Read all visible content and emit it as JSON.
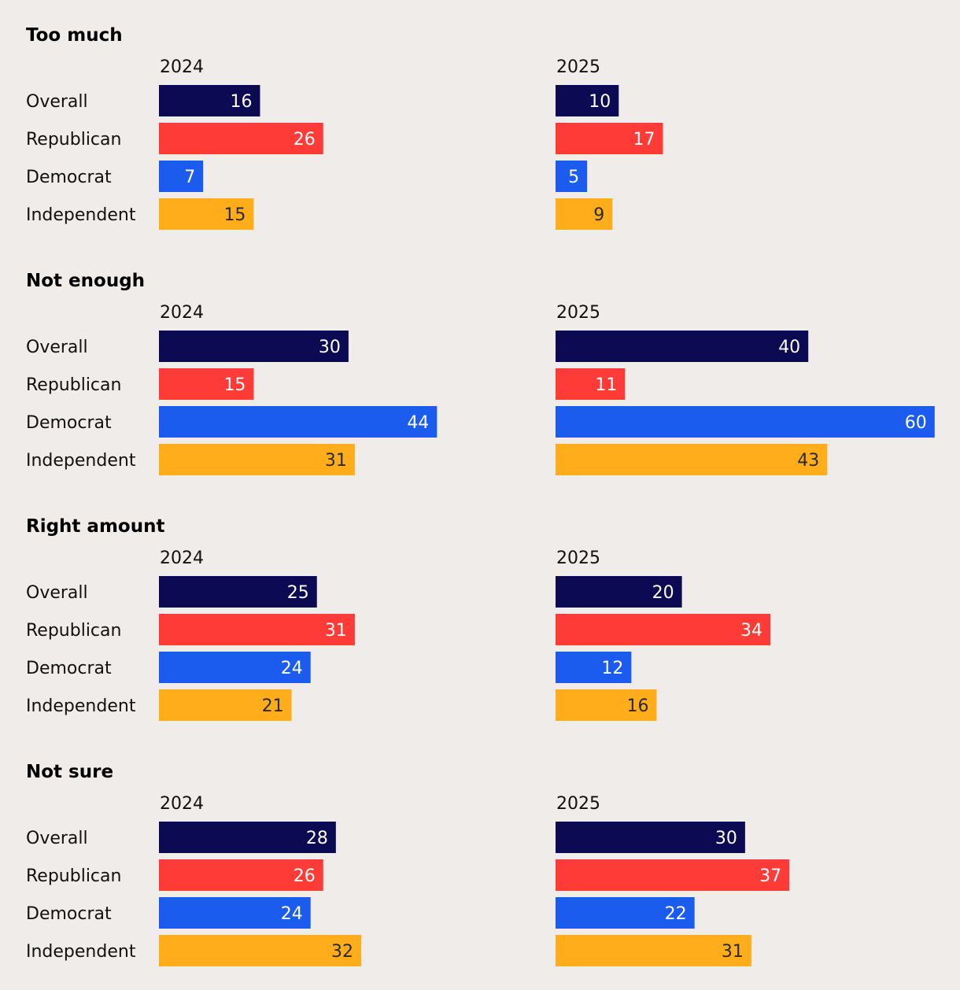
{
  "colors": {
    "background": "#f0ece9",
    "Overall": "#0b0a52",
    "Republican": "#ff3b38",
    "Democrat": "#1b5cef",
    "Independent": "#ffad1a"
  },
  "chart_data": {
    "type": "bar",
    "orientation": "horizontal",
    "title": "",
    "columns": [
      "2024",
      "2025"
    ],
    "categories": [
      "Overall",
      "Republican",
      "Democrat",
      "Independent"
    ],
    "panels": [
      {
        "name": "Too much",
        "series": [
          {
            "name": "2024",
            "values": [
              16,
              26,
              7,
              15
            ]
          },
          {
            "name": "2025",
            "values": [
              10,
              17,
              5,
              9
            ]
          }
        ]
      },
      {
        "name": "Not enough",
        "series": [
          {
            "name": "2024",
            "values": [
              30,
              15,
              44,
              31
            ]
          },
          {
            "name": "2025",
            "values": [
              40,
              11,
              60,
              43
            ]
          }
        ]
      },
      {
        "name": "Right amount",
        "series": [
          {
            "name": "2024",
            "values": [
              25,
              31,
              24,
              21
            ]
          },
          {
            "name": "2025",
            "values": [
              20,
              34,
              12,
              16
            ]
          }
        ]
      },
      {
        "name": "Not sure",
        "series": [
          {
            "name": "2024",
            "values": [
              28,
              26,
              24,
              32
            ]
          },
          {
            "name": "2025",
            "values": [
              30,
              37,
              22,
              31
            ]
          }
        ]
      }
    ],
    "xlim": [
      0,
      60
    ],
    "grid": false,
    "legend": "none"
  }
}
